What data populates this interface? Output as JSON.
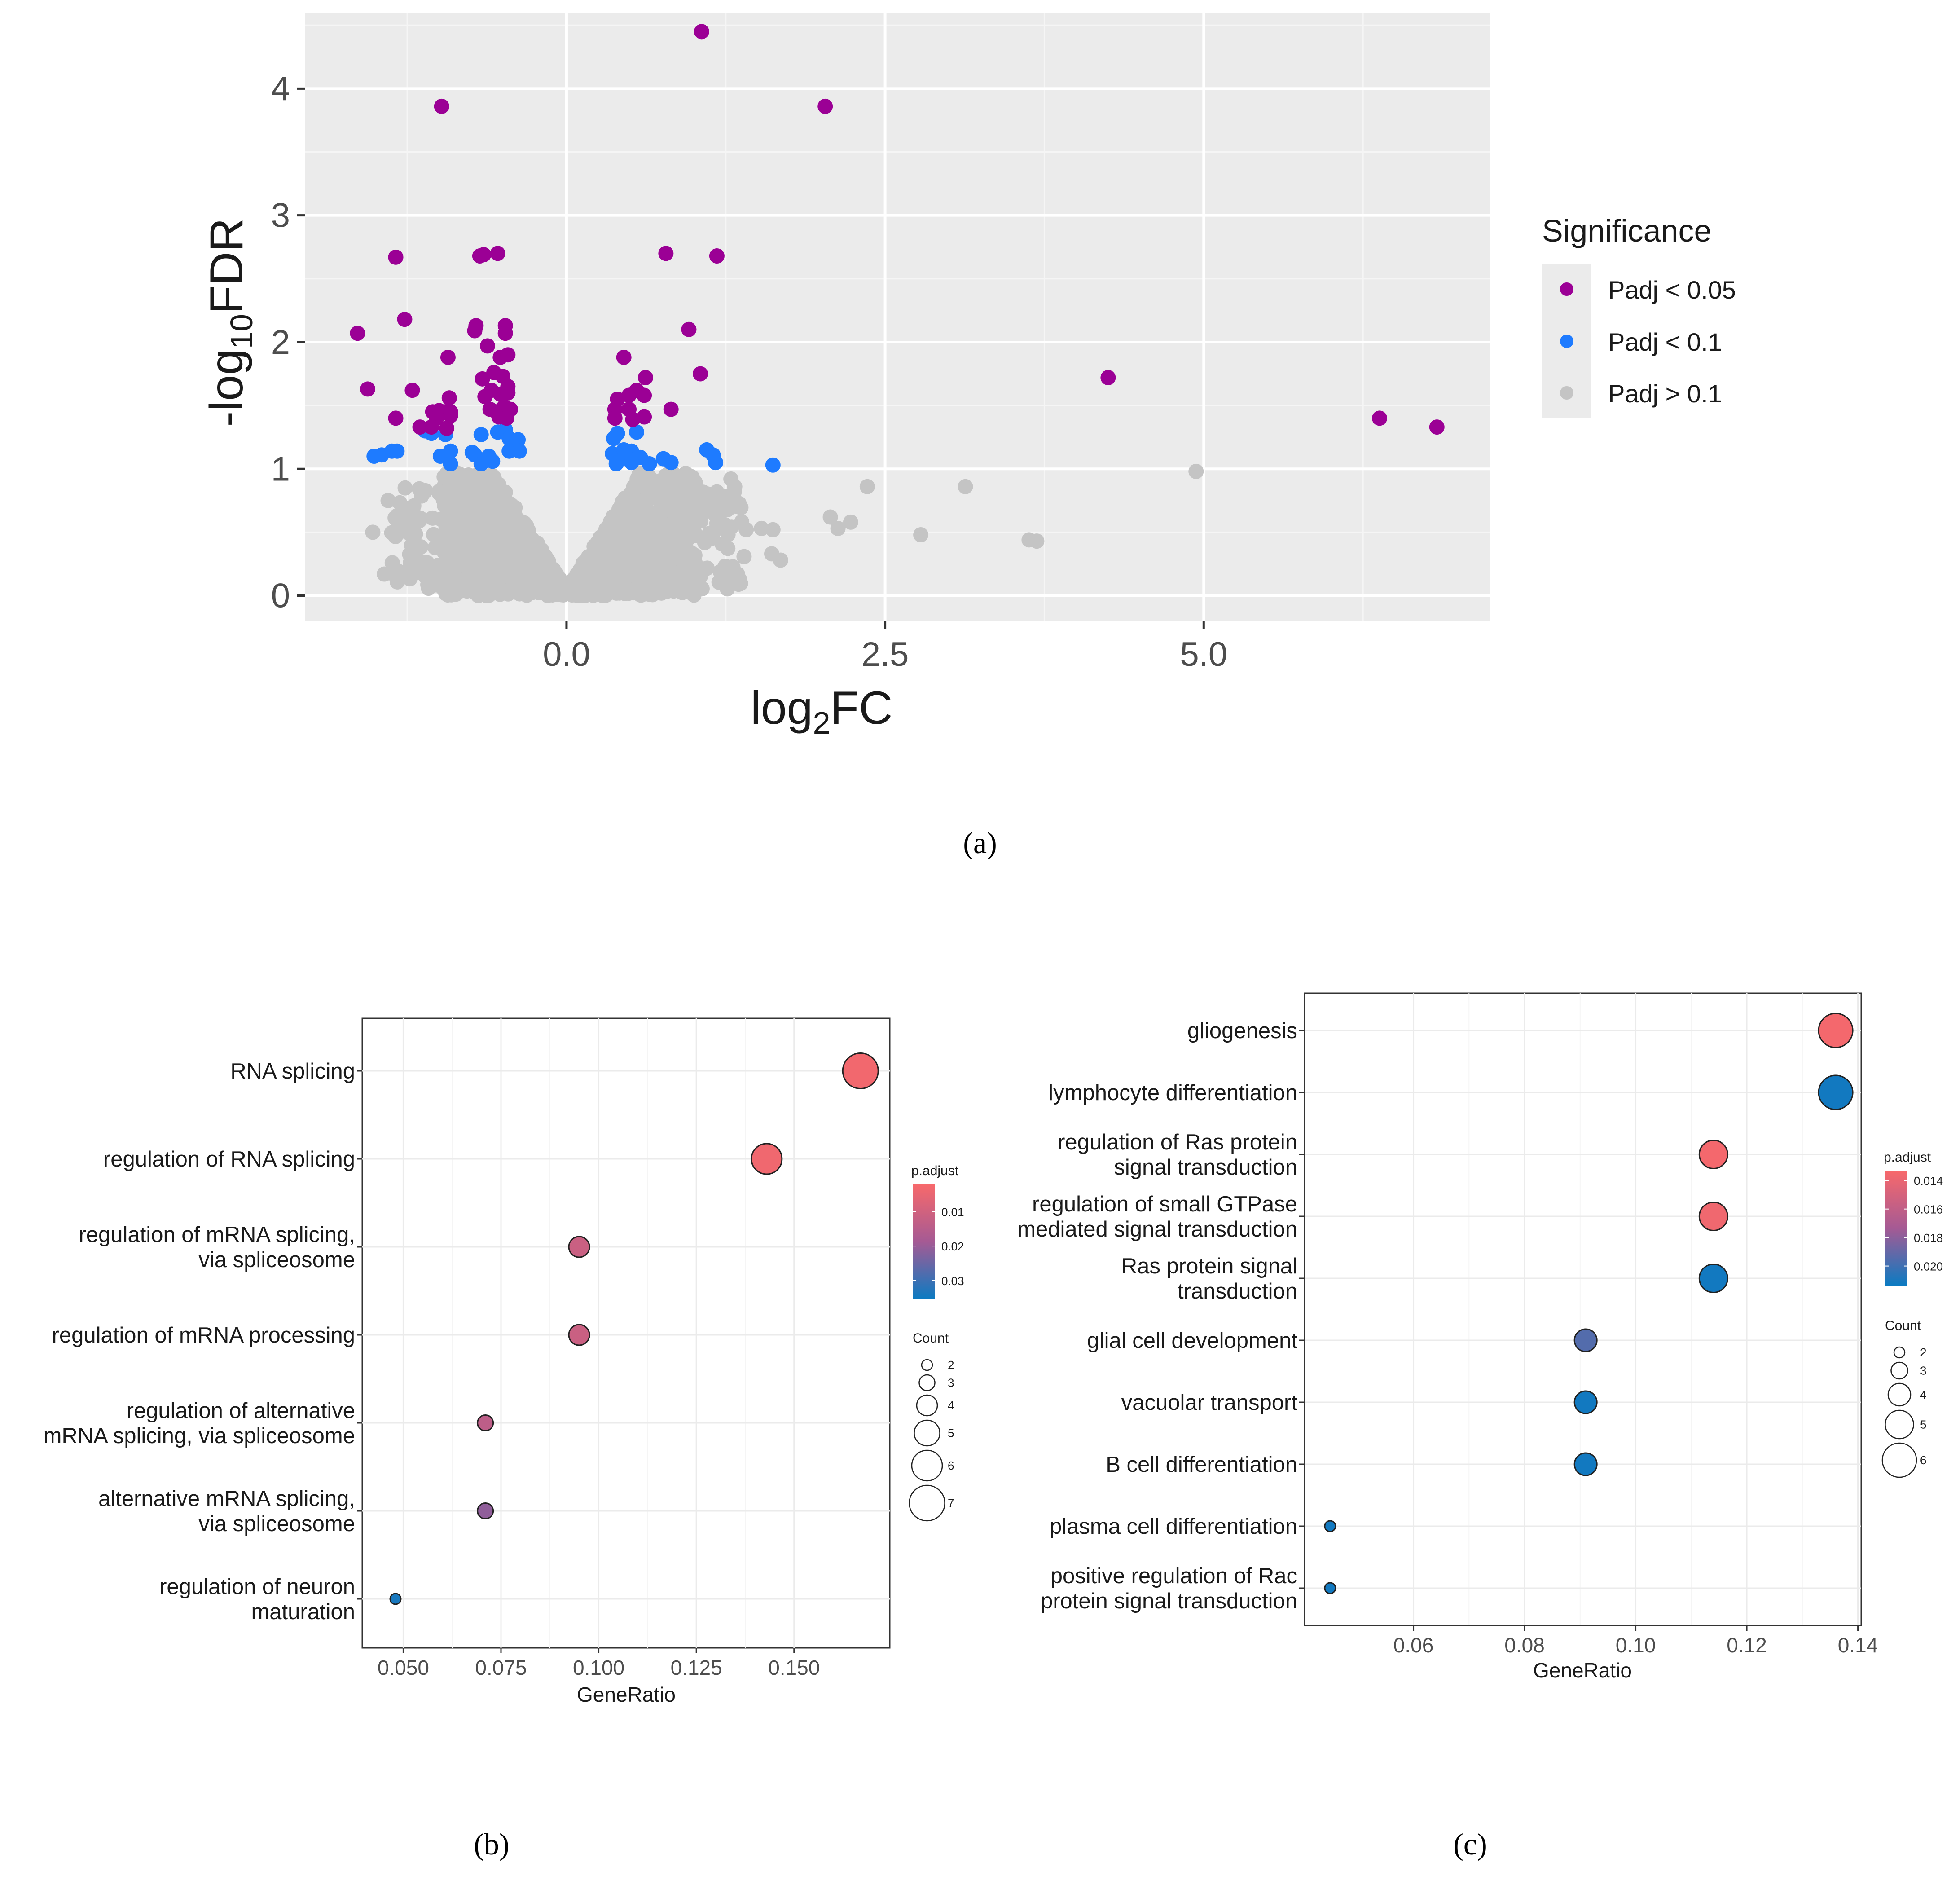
{
  "panels": {
    "a": {
      "caption": "(a)"
    },
    "b": {
      "caption": "(b)"
    },
    "c": {
      "caption": "(c)"
    }
  },
  "chart_data": [
    {
      "id": "volcano",
      "type": "scatter",
      "title": "",
      "xlabel_main": "log",
      "xlabel_sub": "2",
      "xlabel_tail": "FC",
      "ylabel_main": "-log",
      "ylabel_sub": "10",
      "ylabel_tail": "FDR",
      "xlim": [
        -2.05,
        7.25
      ],
      "ylim": [
        -0.2,
        4.6
      ],
      "x_ticks": [
        0.0,
        2.5,
        5.0
      ],
      "x_tick_labels": [
        "0.0",
        "2.5",
        "5.0"
      ],
      "y_ticks": [
        0,
        1,
        2,
        3,
        4
      ],
      "y_tick_labels": [
        "0",
        "1",
        "2",
        "3",
        "4"
      ],
      "legend": {
        "title": "Significance",
        "position": "right",
        "entries": [
          {
            "label": "Padj < 0.05",
            "color": "#9b0095"
          },
          {
            "label": "Padj < 0.1",
            "color": "#1e7bff"
          },
          {
            "label": "Padj > 0.1",
            "color": "#c4c4c4"
          }
        ]
      },
      "series": [
        {
          "name": "Padj < 0.05",
          "color": "#9b0095",
          "points": [
            [
              1.06,
              4.45
            ],
            [
              -0.98,
              3.86
            ],
            [
              2.03,
              3.86
            ],
            [
              -1.34,
              2.67
            ],
            [
              -0.65,
              2.69
            ],
            [
              -0.68,
              2.68
            ],
            [
              -0.54,
              2.7
            ],
            [
              0.78,
              2.7
            ],
            [
              1.18,
              2.68
            ],
            [
              -1.27,
              2.18
            ],
            [
              -1.64,
              2.07
            ],
            [
              -0.71,
              2.13
            ],
            [
              -0.72,
              2.09
            ],
            [
              -0.48,
              2.13
            ],
            [
              -0.48,
              2.07
            ],
            [
              0.96,
              2.1
            ],
            [
              -0.62,
              1.97
            ],
            [
              -0.93,
              1.88
            ],
            [
              -0.52,
              1.88
            ],
            [
              -0.46,
              1.9
            ],
            [
              0.45,
              1.88
            ],
            [
              1.05,
              1.75
            ],
            [
              -0.57,
              1.76
            ],
            [
              -0.66,
              1.71
            ],
            [
              -0.5,
              1.73
            ],
            [
              0.62,
              1.72
            ],
            [
              4.25,
              1.72
            ],
            [
              -1.56,
              1.63
            ],
            [
              -1.21,
              1.62
            ],
            [
              -0.59,
              1.62
            ],
            [
              -0.46,
              1.65
            ],
            [
              0.55,
              1.62
            ],
            [
              -0.92,
              1.56
            ],
            [
              -0.64,
              1.57
            ],
            [
              -0.52,
              1.59
            ],
            [
              -0.46,
              1.6
            ],
            [
              0.49,
              1.58
            ],
            [
              0.61,
              1.58
            ],
            [
              0.4,
              1.55
            ],
            [
              -1.0,
              1.46
            ],
            [
              -1.05,
              1.45
            ],
            [
              -0.96,
              1.45
            ],
            [
              -0.91,
              1.45
            ],
            [
              -0.6,
              1.47
            ],
            [
              -0.55,
              1.45
            ],
            [
              -0.49,
              1.49
            ],
            [
              -0.44,
              1.47
            ],
            [
              0.38,
              1.47
            ],
            [
              0.49,
              1.47
            ],
            [
              0.82,
              1.47
            ],
            [
              -1.34,
              1.4
            ],
            [
              -1.02,
              1.4
            ],
            [
              -0.91,
              1.42
            ],
            [
              -0.53,
              1.41
            ],
            [
              -0.47,
              1.4
            ],
            [
              0.38,
              1.4
            ],
            [
              0.52,
              1.39
            ],
            [
              0.61,
              1.41
            ],
            [
              6.38,
              1.4
            ],
            [
              -1.15,
              1.33
            ],
            [
              -1.06,
              1.33
            ],
            [
              -0.94,
              1.32
            ],
            [
              6.83,
              1.33
            ]
          ]
        },
        {
          "name": "Padj < 0.1",
          "color": "#1e7bff",
          "points": [
            [
              -1.11,
              1.3
            ],
            [
              -1.06,
              1.28
            ],
            [
              -0.95,
              1.27
            ],
            [
              -0.67,
              1.27
            ],
            [
              -0.54,
              1.29
            ],
            [
              -0.48,
              1.31
            ],
            [
              0.4,
              1.28
            ],
            [
              0.55,
              1.29
            ],
            [
              -0.45,
              1.24
            ],
            [
              -0.38,
              1.23
            ],
            [
              0.37,
              1.24
            ],
            [
              -1.37,
              1.14
            ],
            [
              -1.33,
              1.14
            ],
            [
              -0.91,
              1.14
            ],
            [
              -0.74,
              1.13
            ],
            [
              -0.45,
              1.14
            ],
            [
              -0.37,
              1.14
            ],
            [
              0.36,
              1.12
            ],
            [
              0.45,
              1.15
            ],
            [
              0.51,
              1.14
            ],
            [
              1.1,
              1.15
            ],
            [
              -1.45,
              1.11
            ],
            [
              -1.51,
              1.1
            ],
            [
              -0.99,
              1.1
            ],
            [
              -0.72,
              1.11
            ],
            [
              -0.61,
              1.1
            ],
            [
              0.46,
              1.11
            ],
            [
              0.58,
              1.09
            ],
            [
              0.76,
              1.08
            ],
            [
              1.15,
              1.11
            ],
            [
              -0.91,
              1.04
            ],
            [
              -0.67,
              1.04
            ],
            [
              -0.58,
              1.06
            ],
            [
              0.39,
              1.04
            ],
            [
              0.51,
              1.05
            ],
            [
              0.65,
              1.04
            ],
            [
              0.82,
              1.05
            ],
            [
              1.17,
              1.05
            ],
            [
              1.62,
              1.03
            ]
          ]
        },
        {
          "name": "Padj > 0.1",
          "color": "#c4c4c4",
          "points": [
            [
              2.36,
              0.86
            ],
            [
              3.13,
              0.86
            ],
            [
              4.94,
              0.98
            ],
            [
              2.07,
              0.62
            ],
            [
              2.13,
              0.53
            ],
            [
              2.23,
              0.58
            ],
            [
              2.78,
              0.48
            ],
            [
              3.63,
              0.44
            ],
            [
              3.69,
              0.43
            ],
            [
              1.68,
              0.28
            ],
            [
              1.61,
              0.33
            ],
            [
              1.53,
              0.53
            ],
            [
              1.35,
              0.09
            ],
            [
              1.29,
              0.92
            ],
            [
              1.24,
              0.56
            ],
            [
              1.18,
              0.57
            ],
            [
              1.12,
              0.49
            ],
            [
              1.41,
              0.52
            ],
            [
              1.62,
              0.52
            ],
            [
              1.32,
              0.86
            ],
            [
              -1.52,
              0.5
            ],
            [
              -1.43,
              0.17
            ],
            [
              -1.18,
              0.18
            ],
            [
              -1.03,
              0.16
            ],
            [
              -1.33,
              0.63
            ],
            [
              -1.4,
              0.75
            ]
          ]
        }
      ],
      "background_points_note": "dense cloud near origin"
    },
    {
      "id": "dotplot-b",
      "type": "scatter",
      "xlabel": "GeneRatio",
      "xlim": [
        0.0395,
        0.1745
      ],
      "x_ticks": [
        0.05,
        0.075,
        0.1,
        0.125,
        0.15
      ],
      "x_tick_labels": [
        "0.050",
        "0.075",
        "0.100",
        "0.125",
        "0.150"
      ],
      "categories": [
        [
          "RNA splicing"
        ],
        [
          "regulation of RNA splicing"
        ],
        [
          "regulation of mRNA splicing,",
          "via spliceosome"
        ],
        [
          "regulation of mRNA processing"
        ],
        [
          "regulation of alternative",
          "mRNA splicing, via spliceosome"
        ],
        [
          "alternative mRNA splicing,",
          "via spliceosome"
        ],
        [
          "regulation of neuron",
          "maturation"
        ]
      ],
      "values": [
        0.167,
        0.143,
        0.095,
        0.095,
        0.071,
        0.071,
        0.048
      ],
      "counts": [
        7,
        6,
        4,
        4,
        3,
        3,
        2
      ],
      "padj": [
        0.0032,
        0.0036,
        0.0115,
        0.0115,
        0.014,
        0.021,
        0.034
      ],
      "color_legend": {
        "title": "p.adjust",
        "ticks": [
          0.01,
          0.02,
          0.03
        ],
        "tick_labels": [
          "0.01",
          "0.02",
          "0.03"
        ],
        "range": [
          0.002,
          0.0355
        ],
        "low_color": "#f8696b",
        "high_color": "#0a7bc2"
      },
      "size_legend": {
        "title": "Count",
        "values": [
          2,
          3,
          4,
          5,
          6,
          7
        ],
        "labels": [
          "2",
          "3",
          "4",
          "5",
          "6",
          "7"
        ]
      }
    },
    {
      "id": "dotplot-c",
      "type": "scatter",
      "xlabel": "GeneRatio",
      "xlim": [
        0.0404,
        0.1406
      ],
      "x_ticks": [
        0.06,
        0.08,
        0.1,
        0.12,
        0.14
      ],
      "x_tick_labels": [
        "0.06",
        "0.08",
        "0.10",
        "0.12",
        "0.14"
      ],
      "categories": [
        [
          "gliogenesis"
        ],
        [
          "lymphocyte differentiation"
        ],
        [
          "regulation of Ras protein",
          "signal transduction"
        ],
        [
          "regulation of small GTPase",
          "mediated signal transduction"
        ],
        [
          "Ras protein signal",
          "transduction"
        ],
        [
          "glial cell development"
        ],
        [
          "vacuolar transport"
        ],
        [
          "B cell differentiation"
        ],
        [
          "plasma cell differentiation"
        ],
        [
          "positive regulation of Rac",
          "protein signal transduction"
        ]
      ],
      "values": [
        0.136,
        0.136,
        0.114,
        0.114,
        0.114,
        0.091,
        0.091,
        0.091,
        0.045,
        0.045
      ],
      "counts": [
        6,
        6,
        5,
        5,
        5,
        4,
        4,
        4,
        2,
        2
      ],
      "padj": [
        0.0135,
        0.0212,
        0.0135,
        0.0137,
        0.0212,
        0.0195,
        0.0212,
        0.0212,
        0.0212,
        0.0212
      ],
      "color_legend": {
        "title": "p.adjust",
        "ticks": [
          0.014,
          0.016,
          0.018,
          0.02
        ],
        "tick_labels": [
          "0.014",
          "0.016",
          "0.018",
          "0.020"
        ],
        "range": [
          0.0133,
          0.0214
        ],
        "low_color": "#f8696b",
        "high_color": "#0a7bc2"
      },
      "size_legend": {
        "title": "Count",
        "values": [
          2,
          3,
          4,
          5,
          6
        ],
        "labels": [
          "2",
          "3",
          "4",
          "5",
          "6"
        ]
      }
    }
  ]
}
